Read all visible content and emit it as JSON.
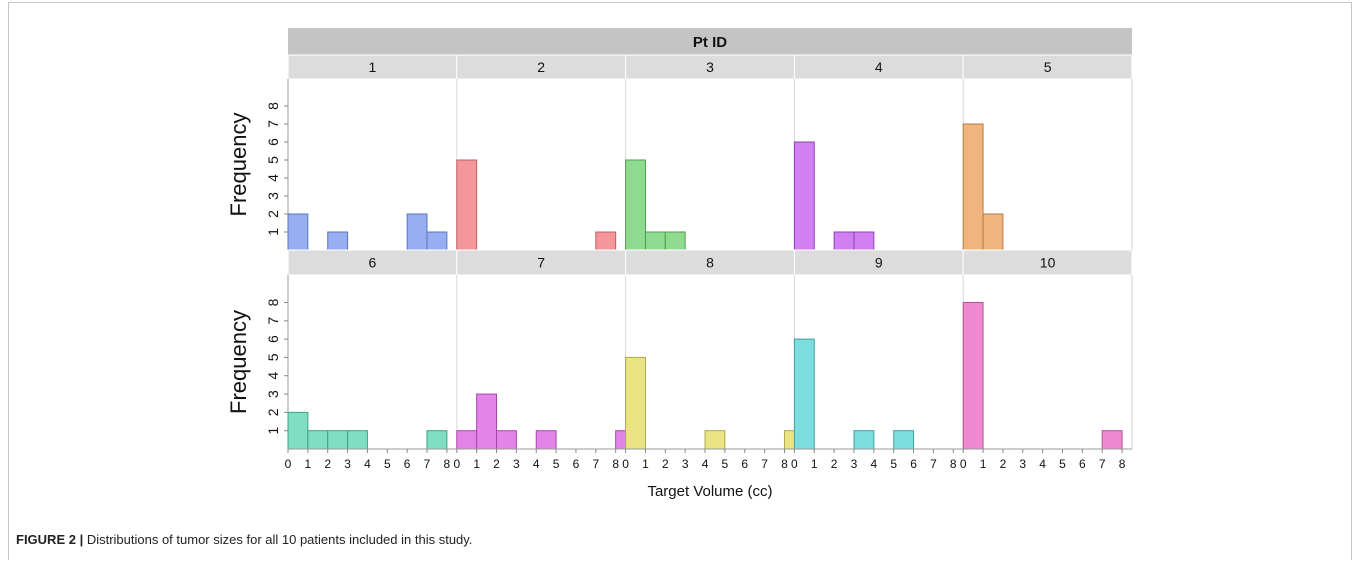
{
  "chart_data": {
    "type": "bar",
    "facet_title": "Pt ID",
    "xlabel": "Target Volume (cc)",
    "ylabel": "Frequency",
    "x_ticks": [
      0,
      1,
      2,
      3,
      4,
      5,
      6,
      7,
      8
    ],
    "y_ticks": [
      1,
      2,
      3,
      4,
      5,
      6,
      7,
      8
    ],
    "xlim": [
      0,
      8.5
    ],
    "ylim": [
      0,
      9.5
    ],
    "bin_width": 0.5,
    "panels": [
      {
        "id": "1",
        "color": "#97AEF0",
        "stroke": "#5A74C4",
        "bins": [
          [
            0,
            2
          ],
          [
            2,
            1
          ],
          [
            6,
            2
          ],
          [
            7,
            1
          ]
        ]
      },
      {
        "id": "2",
        "color": "#F4979B",
        "stroke": "#C45A60",
        "bins": [
          [
            0,
            5
          ],
          [
            7,
            1
          ]
        ]
      },
      {
        "id": "3",
        "color": "#8FDA8F",
        "stroke": "#4E9E4E",
        "bins": [
          [
            0,
            5
          ],
          [
            1,
            1
          ],
          [
            2,
            1
          ]
        ]
      },
      {
        "id": "4",
        "color": "#D080F0",
        "stroke": "#9040B8",
        "bins": [
          [
            0,
            6
          ],
          [
            2,
            1
          ],
          [
            3,
            1
          ]
        ]
      },
      {
        "id": "5",
        "color": "#F0B47E",
        "stroke": "#B87A44",
        "bins": [
          [
            0,
            7
          ],
          [
            1,
            2
          ]
        ]
      },
      {
        "id": "6",
        "color": "#80DEC2",
        "stroke": "#3FA286",
        "bins": [
          [
            0,
            2
          ],
          [
            1,
            1
          ],
          [
            2,
            1
          ],
          [
            3,
            1
          ],
          [
            7,
            1
          ]
        ]
      },
      {
        "id": "7",
        "color": "#E484E8",
        "stroke": "#A848AC",
        "bins": [
          [
            0,
            1
          ],
          [
            1,
            3
          ],
          [
            2,
            1
          ],
          [
            4,
            1
          ],
          [
            8,
            1
          ]
        ]
      },
      {
        "id": "8",
        "color": "#EAE484",
        "stroke": "#AEA848",
        "bins": [
          [
            0,
            5
          ],
          [
            4,
            1
          ],
          [
            8,
            1
          ]
        ]
      },
      {
        "id": "9",
        "color": "#7DDCDE",
        "stroke": "#3FA0A2",
        "bins": [
          [
            0,
            6
          ],
          [
            3,
            1
          ],
          [
            5,
            1
          ]
        ]
      },
      {
        "id": "10",
        "color": "#F08AD0",
        "stroke": "#B44E94",
        "bins": [
          [
            0,
            8
          ],
          [
            7,
            1
          ]
        ]
      }
    ]
  },
  "caption": {
    "label": "FIGURE 2 |",
    "text": " Distributions of tumor sizes for all 10 patients included in this study."
  }
}
